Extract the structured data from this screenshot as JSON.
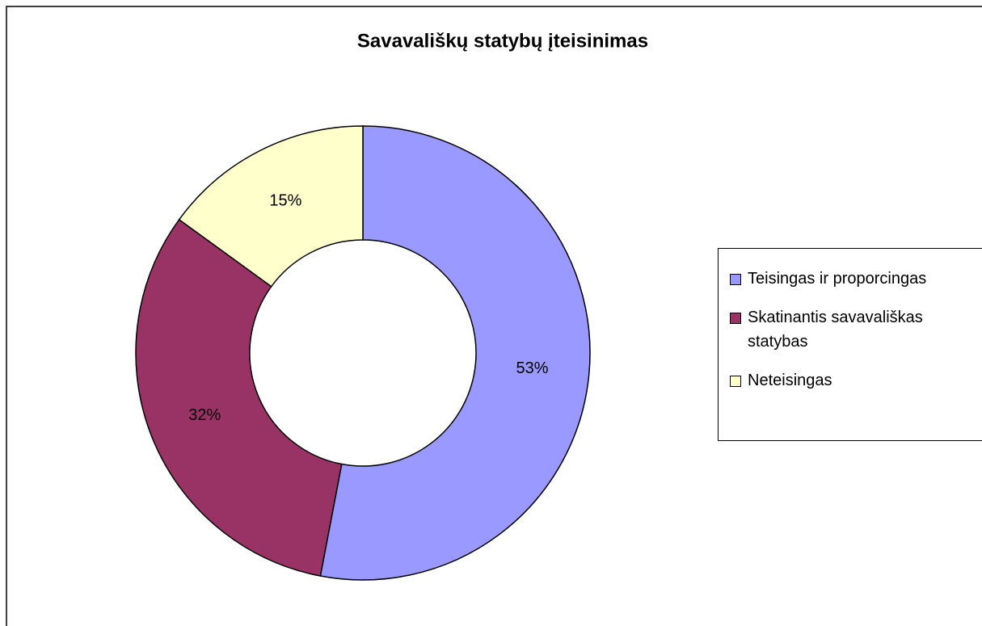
{
  "chart_data": {
    "type": "pie",
    "donut": true,
    "title": "Savavališkų statybų įteisinimas",
    "categories": [
      "Teisingas ir proporcingas",
      "Skatinantis savavališkas statybas",
      "Neteisingas"
    ],
    "values": [
      53,
      32,
      15
    ],
    "value_labels": [
      "53%",
      "32%",
      "15%"
    ],
    "colors": [
      "#9999ff",
      "#993366",
      "#ffffcc"
    ],
    "legend": "right"
  }
}
